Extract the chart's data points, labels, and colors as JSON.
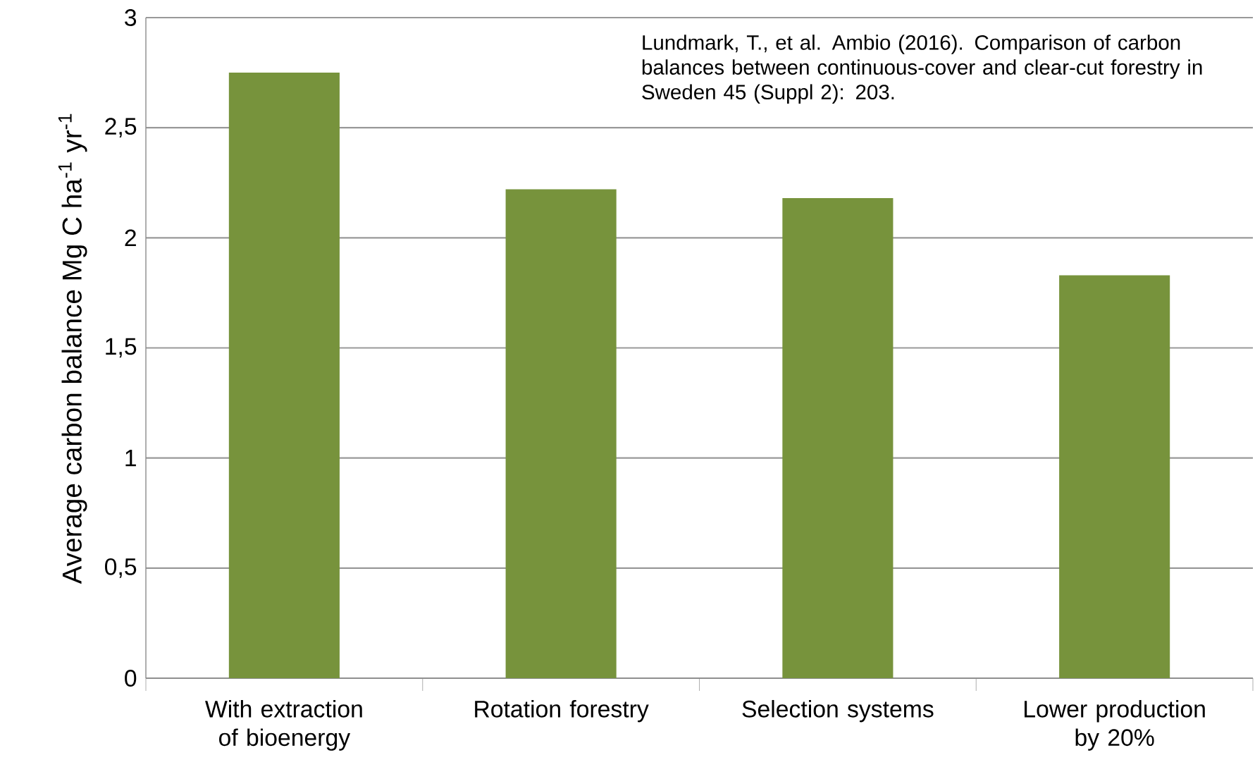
{
  "chart_data": {
    "type": "bar",
    "ylabel": "Average carbon balance Mg C ha$^{-1}$ yr$^{-1}$",
    "categories": [
      "With extraction of bioenergy",
      "Rotation forestry",
      "Selection systems",
      "Lower production by 20%"
    ],
    "values": [
      2.75,
      2.22,
      2.18,
      1.83
    ],
    "color": "#77933c",
    "ylim": [
      0,
      3
    ],
    "yticks": [
      0,
      {
        "value": 0.5,
        "label": "0,5"
      },
      1,
      {
        "value": 1.5,
        "label": "1,5"
      },
      2,
      {
        "value": 2.5,
        "label": "2,5"
      },
      3
    ],
    "grid": "y",
    "annotations": [
      "Lundmark, T., et al. Ambio (2016). Comparison of carbon balances between continuous-cover and clear-cut forestry in Sweden 45 (Suppl 2): 203."
    ]
  }
}
